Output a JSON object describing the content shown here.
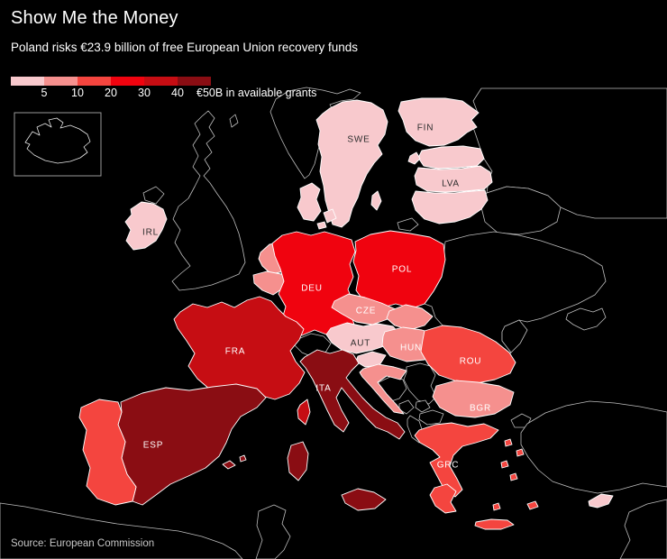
{
  "header": {
    "title": "Show Me the Money",
    "subtitle": "Poland risks €23.9 billion of free European Union recovery funds"
  },
  "legend": {
    "tick_labels": [
      "5",
      "10",
      "20",
      "30",
      "40"
    ],
    "end_label": "€50B in available grants",
    "colors": [
      "#f8c9cd",
      "#f5908e",
      "#f4453f",
      "#f0030f",
      "#c60d13",
      "#8a0d13"
    ]
  },
  "source": "Source: European Commission",
  "map": {
    "sea_color": "#000000",
    "noneu_fill": "#000000",
    "noneu_stroke": "#bdbdbd",
    "eu_stroke": "#ffffff",
    "label_dark": "#2e2e2e",
    "label_light": "#ffffff",
    "countries": [
      {
        "code": "SWE",
        "label": "SWE",
        "bucket": 0
      },
      {
        "code": "FIN",
        "label": "FIN",
        "bucket": 0
      },
      {
        "code": "EST",
        "bucket": 0
      },
      {
        "code": "LVA",
        "label": "LVA",
        "bucket": 0
      },
      {
        "code": "LTU",
        "bucket": 0
      },
      {
        "code": "DNK",
        "bucket": 0
      },
      {
        "code": "IRL",
        "label": "IRL",
        "bucket": 0
      },
      {
        "code": "NLD",
        "bucket": 1
      },
      {
        "code": "BEL",
        "bucket": 1
      },
      {
        "code": "LUX",
        "bucket": 0
      },
      {
        "code": "DEU",
        "label": "DEU",
        "bucket": 3
      },
      {
        "code": "POL",
        "label": "POL",
        "bucket": 3
      },
      {
        "code": "CZE",
        "label": "CZE",
        "bucket": 1
      },
      {
        "code": "SVK",
        "bucket": 1
      },
      {
        "code": "AUT",
        "label": "AUT",
        "bucket": 0
      },
      {
        "code": "HUN",
        "label": "HUN",
        "bucket": 1
      },
      {
        "code": "SVN",
        "bucket": 0
      },
      {
        "code": "HRV",
        "bucket": 1
      },
      {
        "code": "ROU",
        "label": "ROU",
        "bucket": 2
      },
      {
        "code": "BGR",
        "label": "BGR",
        "bucket": 1
      },
      {
        "code": "GRC",
        "label": "GRC",
        "bucket": 2
      },
      {
        "code": "FRA",
        "label": "FRA",
        "bucket": 4
      },
      {
        "code": "ITA",
        "label": "ITA",
        "bucket": 5
      },
      {
        "code": "ESP",
        "label": "ESP",
        "bucket": 5
      },
      {
        "code": "PRT",
        "bucket": 2
      },
      {
        "code": "CYP",
        "bucket": 0
      }
    ]
  }
}
